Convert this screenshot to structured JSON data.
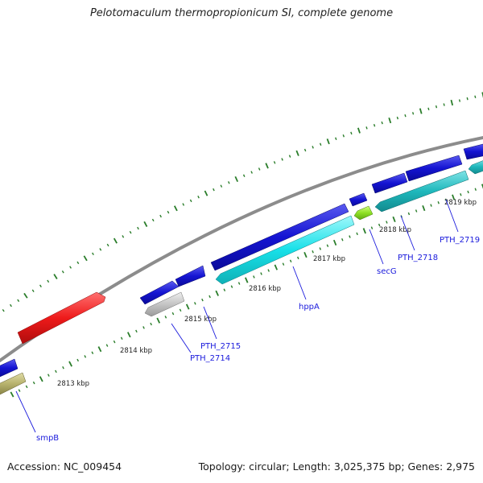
{
  "title": "Pelotomaculum thermopropionicum SI, complete genome",
  "footer": {
    "accession": "Accession: NC_009454",
    "topology": "Topology: circular; Length: 3,025,375 bp; Genes: 2,975"
  },
  "colors": {
    "backbone": "#8c8c8c",
    "tick": "#2a7d2a",
    "label_line": "#1a1adc",
    "cds_forward": "#1414d2",
    "cds_reverse_blue": "#1414d2",
    "cds_cyan": "#18e0e8",
    "cds_teal": "#1fb8bc",
    "cds_red": "#ee1a1a",
    "cds_gray": "#c4c4c4",
    "cds_green": "#8ee024",
    "cds_olive": "#b8b36e"
  },
  "scale": {
    "ticks": [
      "2813 kbp",
      "2814 kbp",
      "2815 kbp",
      "2816 kbp",
      "2817 kbp",
      "2818 kbp",
      "2819 kbp"
    ]
  },
  "genes": [
    {
      "label": "smpB",
      "color": "#b8b36e",
      "strand": "reverse"
    },
    {
      "label": "PTH_2714",
      "color": "#c4c4c4",
      "strand": "reverse"
    },
    {
      "label": "PTH_2715",
      "color": "#1414d2",
      "strand": "reverse"
    },
    {
      "label": "hppA",
      "color": "#18e0e8",
      "strand": "reverse"
    },
    {
      "label": "secG",
      "color": "#8ee024",
      "strand": "reverse"
    },
    {
      "label": "PTH_2718",
      "color": "#1fb8bc",
      "strand": "reverse"
    },
    {
      "label": "PTH_2719",
      "color": "#1fb8bc",
      "strand": "reverse"
    }
  ]
}
